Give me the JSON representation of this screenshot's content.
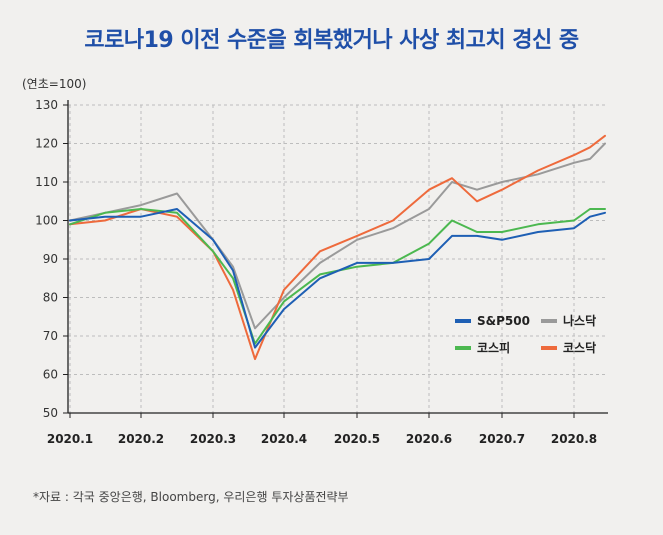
{
  "header": {
    "title": "코로나19 이전 수준을 회복했거나 사상 최고치 경신 중",
    "unit_label": "(연초=100)"
  },
  "footer": {
    "source": "*자료 : 각국 중앙은행, Bloomberg, 우리은행 투자상품전략부"
  },
  "colors": {
    "background": "#f1f0ee",
    "title": "#1f4fa8",
    "sp500": "#1e5fb4",
    "nasdaq": "#9a9a9a",
    "kospi": "#4cb850",
    "kosdaq": "#ee6a3c"
  },
  "chart_data": {
    "type": "line",
    "title": "코로나19 이전 수준을 회복했거나 사상 최고치 경신 중",
    "xlabel": "",
    "ylabel": "(연초=100)",
    "ylim": [
      50,
      130
    ],
    "y_ticks": [
      50,
      60,
      70,
      80,
      90,
      100,
      110,
      120,
      130
    ],
    "x_ticks": [
      "2020.1",
      "2020.2",
      "2020.3",
      "2020.4",
      "2020.5",
      "2020.6",
      "2020.7",
      "2020.8"
    ],
    "x": [
      "2020.1",
      "2020.1.15",
      "2020.2",
      "2020.2.15",
      "2020.3",
      "2020.3.12",
      "2020.3.23",
      "2020.4",
      "2020.4.15",
      "2020.5",
      "2020.5.15",
      "2020.6",
      "2020.6.10",
      "2020.6.20",
      "2020.7",
      "2020.7.15",
      "2020.8",
      "2020.8.15",
      "2020.8.25"
    ],
    "grid": true,
    "legend_position": "bottom-right",
    "series": [
      {
        "name": "S&P500",
        "color": "#1e5fb4",
        "values": [
          100,
          101,
          101,
          103,
          95,
          87,
          67,
          77,
          85,
          89,
          89,
          90,
          96,
          96,
          95,
          97,
          98,
          101,
          102
        ]
      },
      {
        "name": "나스닥",
        "color": "#9a9a9a",
        "values": [
          100,
          102,
          104,
          107,
          95,
          88,
          72,
          80,
          89,
          95,
          98,
          103,
          110,
          108,
          110,
          112,
          115,
          116,
          120
        ]
      },
      {
        "name": "코스피",
        "color": "#4cb850",
        "values": [
          99,
          102,
          103,
          102,
          92,
          85,
          68,
          79,
          86,
          88,
          89,
          94,
          100,
          97,
          97,
          99,
          100,
          103,
          103
        ]
      },
      {
        "name": "코스닥",
        "color": "#ee6a3c",
        "values": [
          99,
          100,
          103,
          101,
          92,
          82,
          64,
          82,
          92,
          96,
          100,
          108,
          111,
          105,
          108,
          113,
          117,
          119,
          122
        ]
      }
    ]
  }
}
